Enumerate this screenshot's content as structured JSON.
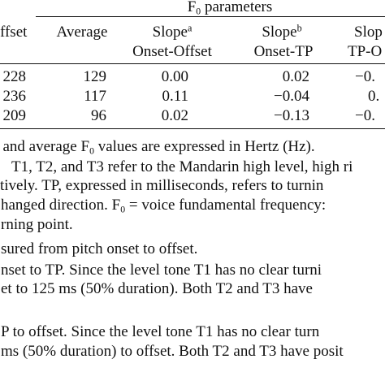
{
  "table": {
    "group_header": {
      "prefix": "F",
      "sub": "0",
      "suffix": " parameters"
    },
    "headers": {
      "onset": "ffset",
      "average": "Average",
      "slope1": {
        "label": "Slope",
        "mark": "a",
        "range": "Onset-Offset"
      },
      "slope2": {
        "label": "Slope",
        "mark": "b",
        "range": "Onset-TP"
      },
      "slope3": {
        "label": "Slop",
        "range": "TP-O"
      }
    },
    "rows": [
      {
        "onset": "228",
        "average": "129",
        "slope1": "0.00",
        "slope2": "0.02",
        "slope3": "−0."
      },
      {
        "onset": "236",
        "average": "117",
        "slope1": "0.11",
        "slope2": "−0.04",
        "slope3": "0."
      },
      {
        "onset": "209",
        "average": "96",
        "slope1": "0.02",
        "slope2": "−0.13",
        "slope3": "−0."
      }
    ]
  },
  "notes": {
    "line1": {
      "a": ", and average F",
      "sub": "0",
      "b": " values are expressed in Hertz (Hz)."
    },
    "line2": "T1, T2, and T3 refer to the Mandarin high level, high ri",
    "line3": "tively. TP, expressed in milliseconds, refers to turnin",
    "line4": {
      "a": "hanged direction. F",
      "sub": "0",
      "b": " = voice fundamental frequency:"
    },
    "line5": "rning point.",
    "line6": "sured from pitch onset to offset.",
    "line7": "nset to TP. Since the level tone T1 has no clear turni",
    "line8": "et to 125 ms (50% duration). Both T2 and T3 have",
    "line9": "P to offset. Since the level tone T1 has no clear turn",
    "line10": "ms (50% duration) to offset. Both T2 and T3 have posit"
  }
}
